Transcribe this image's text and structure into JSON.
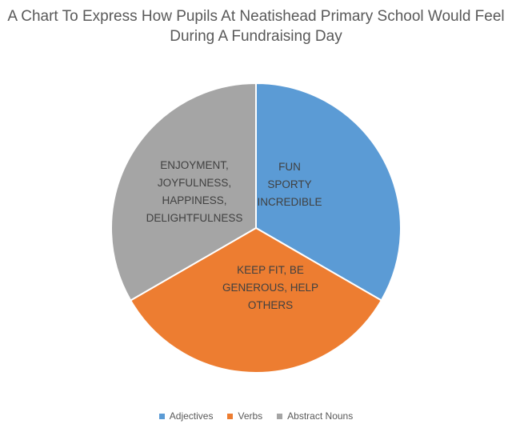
{
  "chart_data": {
    "type": "pie",
    "title_lines": [
      "A Chart To Express How Pupils At Neatishead Primary School Would Feel",
      "During A Fundraising Day"
    ],
    "slices": [
      {
        "name": "Adjectives",
        "value": 1,
        "color": "#5b9bd5",
        "label_lines": [
          "FUN",
          "SPORTY",
          "INCREDIBLE"
        ]
      },
      {
        "name": "Verbs",
        "value": 1,
        "color": "#ed7d31",
        "label_lines": [
          "KEEP FIT, BE",
          "GENEROUS, HELP",
          "OTHERS"
        ]
      },
      {
        "name": "Abstract Nouns",
        "value": 1,
        "color": "#a5a5a5",
        "label_lines": [
          "ENJOYMENT,",
          "JOYFULNESS,",
          "HAPPINESS,",
          "DELIGHTFULNESS"
        ]
      }
    ],
    "legend_position": "bottom"
  }
}
